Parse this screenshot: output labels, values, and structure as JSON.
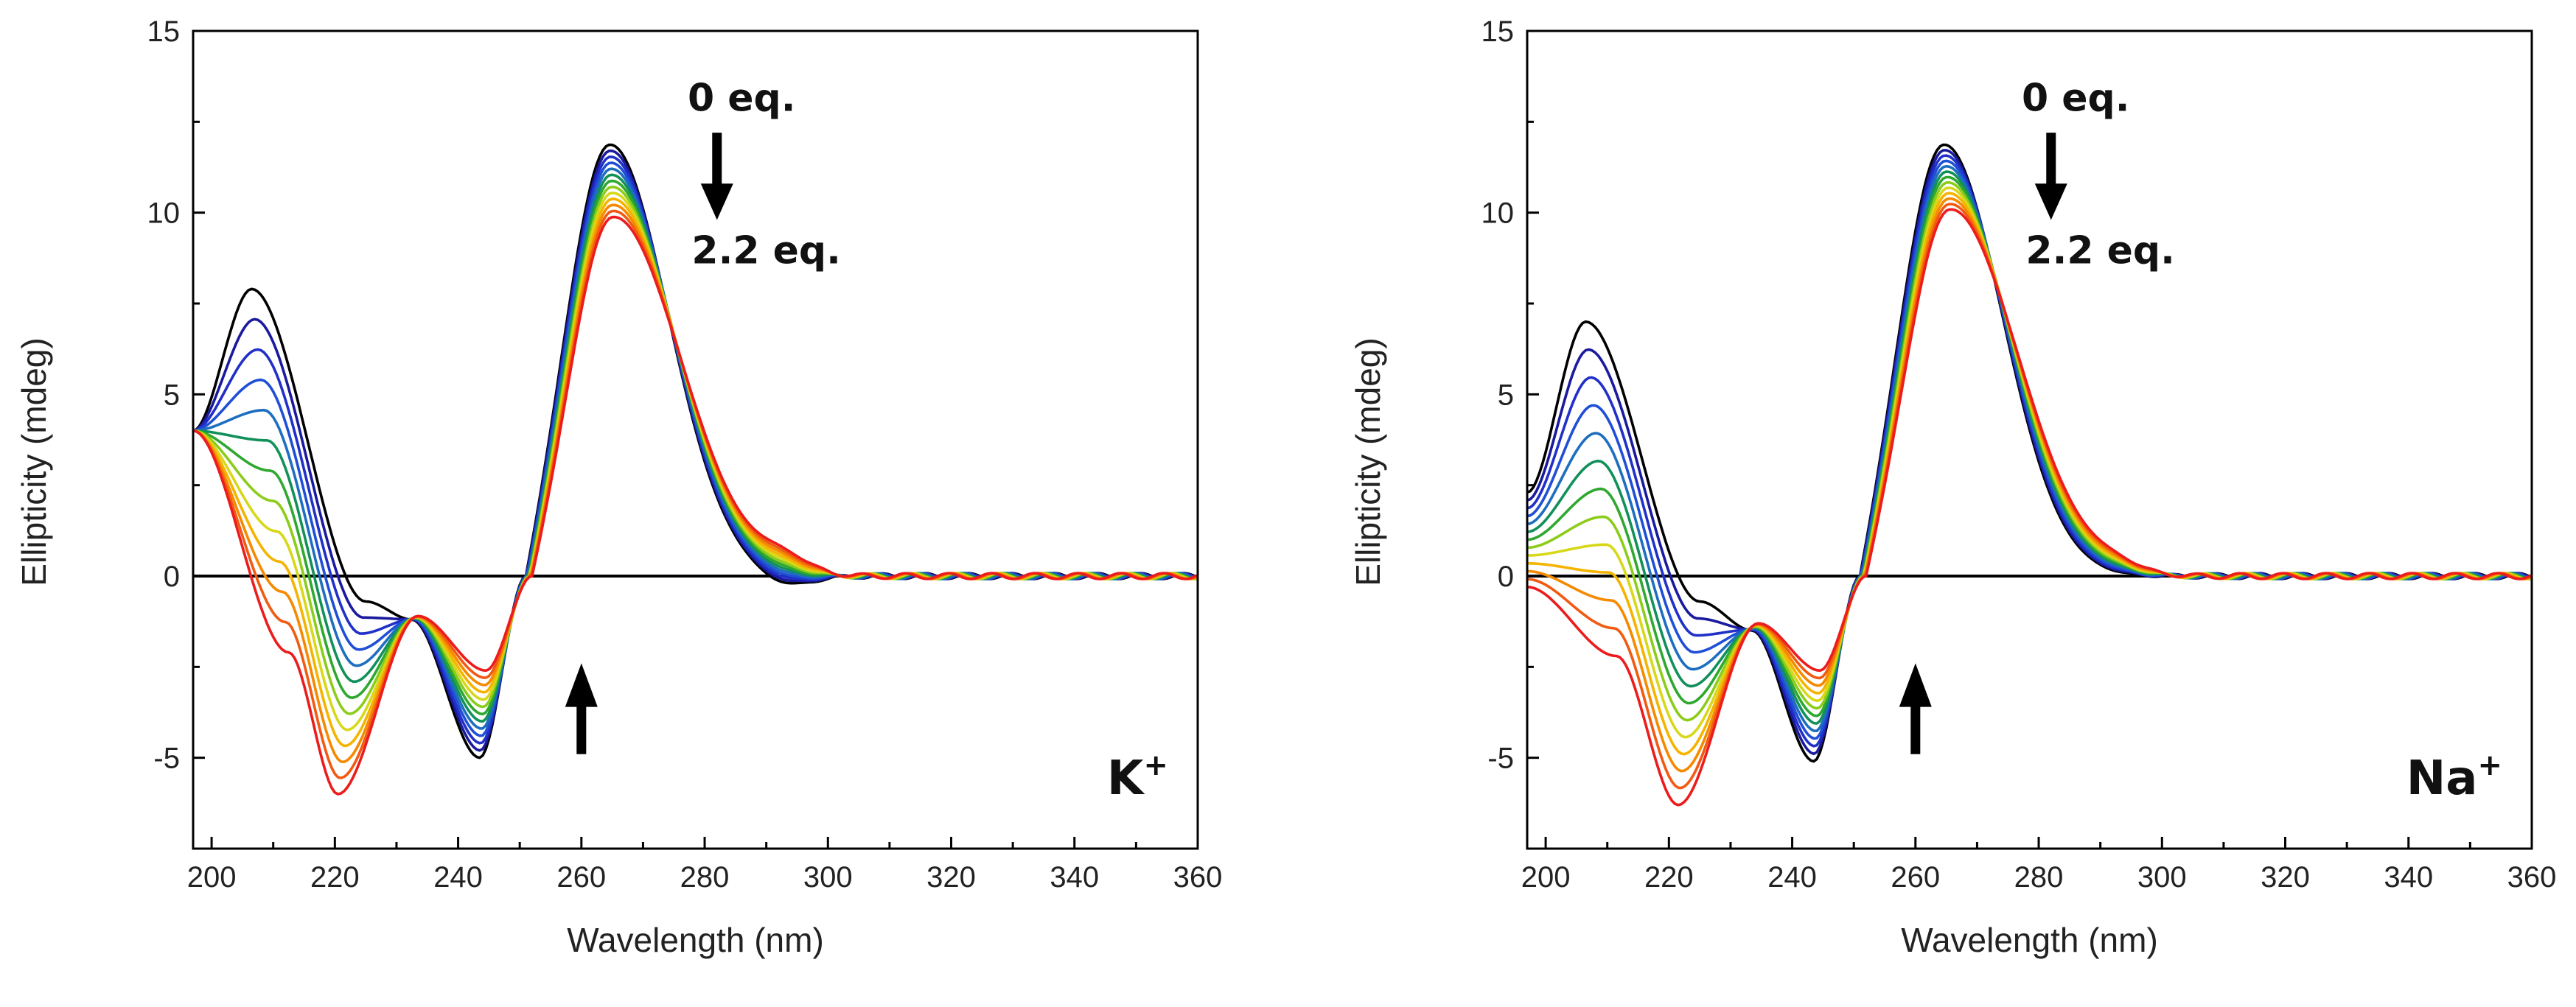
{
  "chart_data": [
    {
      "type": "line",
      "panel": "left",
      "title": "",
      "xlabel": "Wavelength (nm)",
      "ylabel": "Ellipticity (mdeg)",
      "xlim": [
        197,
        360
      ],
      "ylim": [
        -7.5,
        15
      ],
      "xticks": [
        200,
        220,
        240,
        260,
        280,
        300,
        320,
        340,
        360
      ],
      "yticks": [
        -5,
        0,
        5,
        10,
        15
      ],
      "xtick_labels": [
        "200",
        "220",
        "240",
        "260",
        "280",
        "300",
        "320",
        "340",
        "360"
      ],
      "ytick_labels": [
        "-5",
        "0",
        "5",
        "10",
        "15"
      ],
      "zero_line": true,
      "ion_label": "K",
      "ion_charge": "+",
      "top_annotation": "0 eq.",
      "bottom_annotation": "2.2 eq.",
      "titration_range": [
        0,
        2.2
      ],
      "series_colors": [
        "#000000",
        "#1a1a9e",
        "#2030c8",
        "#1f4fd6",
        "#1e6ec0",
        "#12905a",
        "#2fa82f",
        "#8ccc1a",
        "#d8d81a",
        "#f4b400",
        "#f58a00",
        "#f15a12",
        "#ec1c1c"
      ],
      "features": {
        "start": [
          4.0,
          4.0
        ],
        "p1_x": [
          206.5,
          212.5
        ],
        "p1_y": [
          7.9,
          -2.1
        ],
        "v1_x": [
          225,
          220.5
        ],
        "v1_y": [
          -0.7,
          -6.0
        ],
        "p2_x": [
          232.5,
          233.5
        ],
        "p2_y": [
          -1.2,
          -1.1
        ],
        "v2_x": [
          243.5,
          244.5
        ],
        "v2_y": [
          -5.0,
          -2.6
        ],
        "zero_x": [
          251,
          252
        ],
        "p3_x": [
          264.5,
          265
        ],
        "p3_y": [
          12.0,
          10.0
        ],
        "bump_y": [
          -0.3,
          0.4
        ]
      }
    },
    {
      "type": "line",
      "panel": "right",
      "title": "",
      "xlabel": "Wavelength (nm)",
      "ylabel": "Ellipticity (mdeg)",
      "xlim": [
        197,
        360
      ],
      "ylim": [
        -7.5,
        15
      ],
      "xticks": [
        200,
        220,
        240,
        260,
        280,
        300,
        320,
        340,
        360
      ],
      "yticks": [
        -5,
        0,
        5,
        10,
        15
      ],
      "xtick_labels": [
        "200",
        "220",
        "240",
        "260",
        "280",
        "300",
        "320",
        "340",
        "360"
      ],
      "ytick_labels": [
        "-5",
        "0",
        "5",
        "10",
        "15"
      ],
      "zero_line": true,
      "ion_label": "Na",
      "ion_charge": "+",
      "top_annotation": "0 eq.",
      "bottom_annotation": "2.2 eq.",
      "titration_range": [
        0,
        2.2
      ],
      "series_colors": [
        "#000000",
        "#1a1a9e",
        "#2030c8",
        "#1f4fd6",
        "#1e6ec0",
        "#12905a",
        "#2fa82f",
        "#8ccc1a",
        "#d8d81a",
        "#f4b400",
        "#f58a00",
        "#f15a12",
        "#ec1c1c"
      ],
      "features": {
        "start": [
          2.3,
          -0.3
        ],
        "p1_x": [
          206.5,
          211.5
        ],
        "p1_y": [
          7.0,
          -2.2
        ],
        "v1_x": [
          225,
          221.5
        ],
        "v1_y": [
          -0.7,
          -6.3
        ],
        "p2_x": [
          233.5,
          234.5
        ],
        "p2_y": [
          -1.5,
          -1.3
        ],
        "v2_x": [
          243.5,
          244.5
        ],
        "v2_y": [
          -5.1,
          -2.6
        ],
        "zero_x": [
          251,
          252
        ],
        "p3_x": [
          264.5,
          265.5
        ],
        "p3_y": [
          12.0,
          10.2
        ],
        "bump_y": [
          0.0,
          0.2
        ]
      }
    }
  ]
}
